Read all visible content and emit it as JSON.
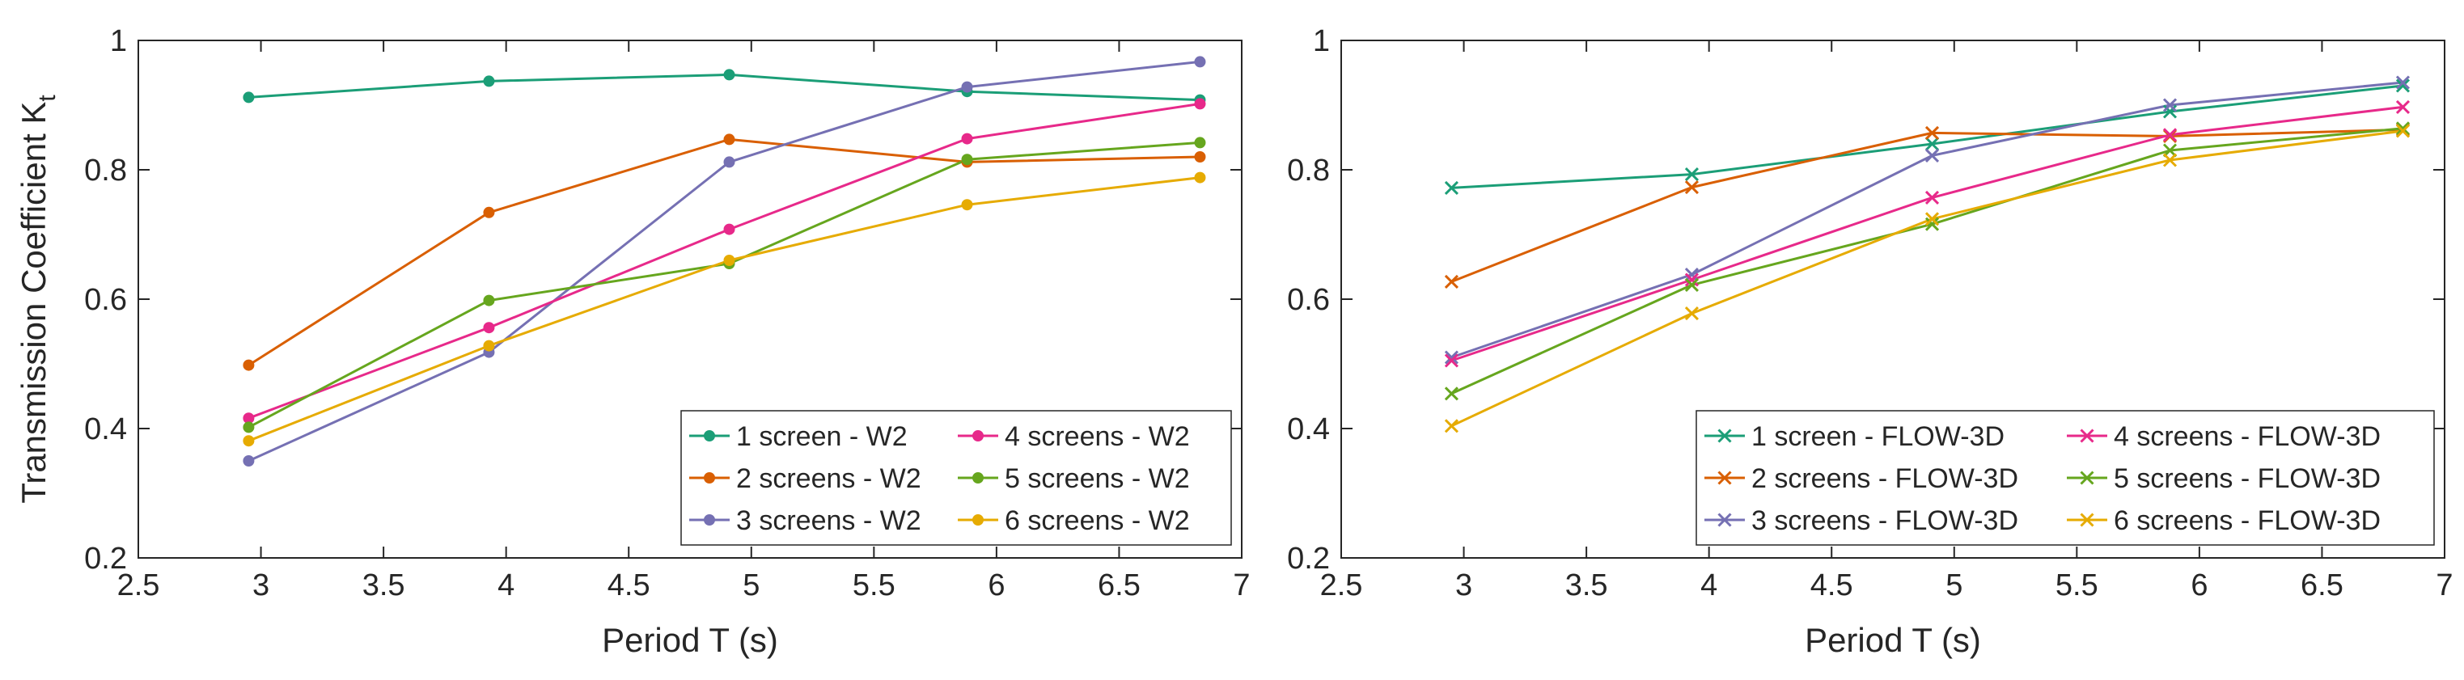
{
  "chart_data": [
    {
      "type": "line",
      "marker": "circle",
      "title": "",
      "xlabel": "Period T (s)",
      "ylabel": "Transmission Coefficient K",
      "ylabel_subscript": "t",
      "xlim": [
        2.5,
        7
      ],
      "ylim": [
        0.2,
        1
      ],
      "xticks": [
        "2.5",
        "3",
        "3.5",
        "4",
        "4.5",
        "5",
        "5.5",
        "6",
        "6.5",
        "7"
      ],
      "yticks": [
        "0.2",
        "0.4",
        "0.6",
        "0.8",
        "1"
      ],
      "grid": false,
      "legend_position": "bottom-right",
      "x": [
        2.95,
        3.93,
        4.91,
        5.88,
        6.83
      ],
      "series": [
        {
          "name": "1 screen - W2",
          "color": "#1b9e77",
          "values": [
            0.912,
            0.937,
            0.947,
            0.921,
            0.908
          ]
        },
        {
          "name": "2 screens - W2",
          "color": "#d95f02",
          "values": [
            0.498,
            0.734,
            0.847,
            0.812,
            0.82
          ]
        },
        {
          "name": "3 screens - W2",
          "color": "#7570b3",
          "values": [
            0.35,
            0.518,
            0.812,
            0.928,
            0.967
          ]
        },
        {
          "name": "4 screens - W2",
          "color": "#e7298a",
          "values": [
            0.416,
            0.556,
            0.708,
            0.848,
            0.902
          ]
        },
        {
          "name": "5 screens - W2",
          "color": "#66a61e",
          "values": [
            0.402,
            0.598,
            0.655,
            0.816,
            0.842
          ]
        },
        {
          "name": "6 screens - W2",
          "color": "#e6ab02",
          "values": [
            0.381,
            0.528,
            0.66,
            0.746,
            0.788
          ]
        }
      ]
    },
    {
      "type": "line",
      "marker": "x",
      "title": "",
      "xlabel": "Period T (s)",
      "ylabel": "",
      "xlim": [
        2.5,
        7
      ],
      "ylim": [
        0.2,
        1
      ],
      "xticks": [
        "2.5",
        "3",
        "3.5",
        "4",
        "4.5",
        "5",
        "5.5",
        "6",
        "6.5",
        "7"
      ],
      "yticks": [
        "0.2",
        "0.4",
        "0.6",
        "0.8",
        "1"
      ],
      "grid": false,
      "legend_position": "bottom-right",
      "x": [
        2.95,
        3.93,
        4.91,
        5.88,
        6.83
      ],
      "series": [
        {
          "name": "1 screen - FLOW-3D",
          "color": "#1b9e77",
          "values": [
            0.772,
            0.793,
            0.84,
            0.89,
            0.93
          ]
        },
        {
          "name": "2 screens - FLOW-3D",
          "color": "#d95f02",
          "values": [
            0.627,
            0.773,
            0.857,
            0.852,
            0.862
          ]
        },
        {
          "name": "3 screens - FLOW-3D",
          "color": "#7570b3",
          "values": [
            0.51,
            0.638,
            0.822,
            0.9,
            0.935
          ]
        },
        {
          "name": "4 screens - FLOW-3D",
          "color": "#e7298a",
          "values": [
            0.505,
            0.63,
            0.757,
            0.854,
            0.897
          ]
        },
        {
          "name": "5 screens - FLOW-3D",
          "color": "#66a61e",
          "values": [
            0.454,
            0.622,
            0.716,
            0.83,
            0.864
          ]
        },
        {
          "name": "6 screens - FLOW-3D",
          "color": "#e6ab02",
          "values": [
            0.404,
            0.578,
            0.724,
            0.815,
            0.86
          ]
        }
      ]
    }
  ]
}
